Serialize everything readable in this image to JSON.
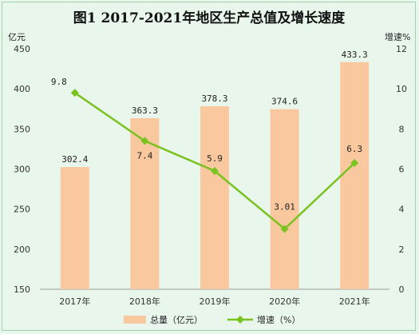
{
  "chart_data": {
    "type": "bar+line",
    "title": "图1 2017-2021年地区生产总值及增长速度",
    "categories": [
      "2017年",
      "2018年",
      "2019年",
      "2020年",
      "2021年"
    ],
    "series": [
      {
        "name": "总量（亿元）",
        "type": "bar",
        "axis": "left",
        "values": [
          302.4,
          363.3,
          378.3,
          374.6,
          433.3
        ],
        "labels": [
          "302.4",
          "363.3",
          "378.3",
          "374.6",
          "433.3"
        ],
        "color": "#fac89e"
      },
      {
        "name": "增速（%）",
        "type": "line",
        "axis": "right",
        "values": [
          9.8,
          7.4,
          5.9,
          3.01,
          6.3
        ],
        "labels": [
          "9.8",
          "7.4",
          "5.9",
          "3.01",
          "6.3"
        ],
        "color": "#7ac21f"
      }
    ],
    "y_left": {
      "label": "亿元",
      "ylim": [
        150,
        450
      ],
      "ticks": [
        "150",
        "200",
        "250",
        "300",
        "350",
        "400",
        "450"
      ]
    },
    "y_right": {
      "label": "增速%",
      "ylim": [
        0,
        12
      ],
      "ticks": [
        "0",
        "2",
        "4",
        "6",
        "8",
        "10",
        "12"
      ]
    },
    "grid": false,
    "legend_position": "bottom"
  }
}
